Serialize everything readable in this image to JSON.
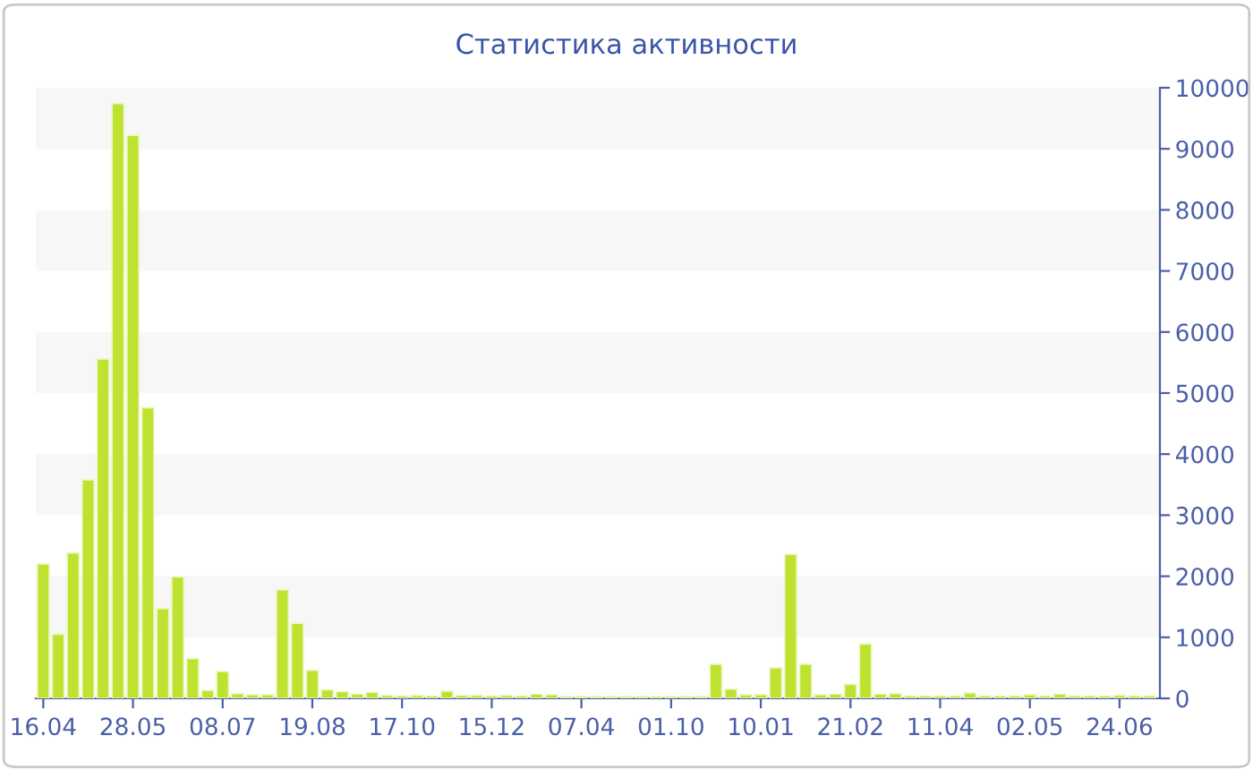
{
  "chart_data": {
    "type": "bar",
    "title": "Статистика активности",
    "categories": [
      "16.04",
      null,
      null,
      null,
      null,
      null,
      "28.05",
      null,
      null,
      null,
      null,
      null,
      "08.07",
      null,
      null,
      null,
      null,
      null,
      "19.08",
      null,
      null,
      null,
      null,
      null,
      "17.10",
      null,
      null,
      null,
      null,
      null,
      "15.12",
      null,
      null,
      null,
      null,
      null,
      "07.04",
      null,
      null,
      null,
      null,
      null,
      "01.10",
      null,
      null,
      null,
      null,
      null,
      "10.01",
      null,
      null,
      null,
      null,
      null,
      "21.02",
      null,
      null,
      null,
      null,
      null,
      "11.04",
      null,
      null,
      null,
      null,
      null,
      "02.05",
      null,
      null,
      null,
      null,
      null,
      "24.06",
      null,
      null
    ],
    "values": [
      2200,
      1050,
      2380,
      3580,
      5560,
      9740,
      9220,
      4760,
      1470,
      1990,
      650,
      130,
      440,
      80,
      60,
      60,
      1780,
      1230,
      460,
      140,
      110,
      70,
      100,
      50,
      40,
      50,
      40,
      120,
      50,
      50,
      40,
      50,
      40,
      70,
      60,
      30,
      30,
      30,
      30,
      30,
      30,
      30,
      30,
      30,
      30,
      560,
      150,
      60,
      60,
      500,
      2360,
      560,
      60,
      70,
      230,
      890,
      70,
      80,
      40,
      40,
      40,
      40,
      90,
      40,
      40,
      40,
      60,
      40,
      70,
      40,
      40,
      40,
      50,
      40,
      40
    ],
    "color": "#bde22f",
    "ylim": [
      0,
      10000
    ],
    "yticks": [
      0,
      1000,
      2000,
      3000,
      4000,
      5000,
      6000,
      7000,
      8000,
      9000,
      10000
    ],
    "bands": [
      {
        "axis": "y",
        "from": 1000,
        "to": 2000,
        "color": "#f7f7f7"
      },
      {
        "axis": "y",
        "from": 3000,
        "to": 4000,
        "color": "#f7f7f7"
      },
      {
        "axis": "y",
        "from": 5000,
        "to": 6000,
        "color": "#f7f7f7"
      },
      {
        "axis": "y",
        "from": 7000,
        "to": 8000,
        "color": "#f7f7f7"
      },
      {
        "axis": "y",
        "from": 9000,
        "to": 10000,
        "color": "#f7f7f7"
      }
    ]
  }
}
